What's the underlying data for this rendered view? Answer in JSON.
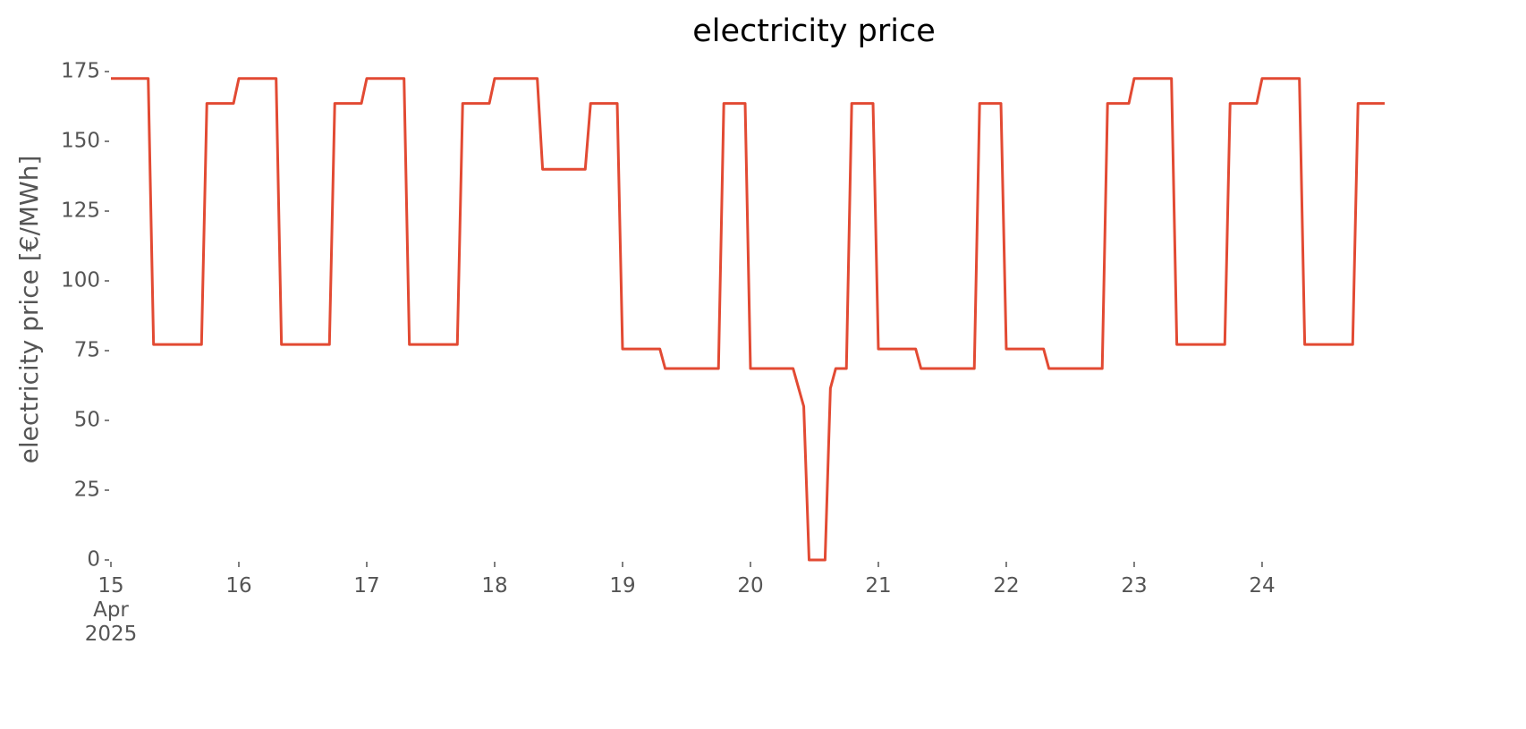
{
  "chart_data": {
    "type": "line",
    "title": "electricity price",
    "ylabel": "electricity price [€/MWh]",
    "ylim": [
      0,
      175
    ],
    "yticks": [
      0,
      25,
      50,
      75,
      100,
      125,
      150,
      175
    ],
    "xlim": [
      "2025-04-15 00:00",
      "2025-04-24 23:00"
    ],
    "xticks": [
      {
        "value": "2025-04-15 00:00",
        "label": "15\nApr\n2025"
      },
      {
        "value": "2025-04-16 00:00",
        "label": "16"
      },
      {
        "value": "2025-04-17 00:00",
        "label": "17"
      },
      {
        "value": "2025-04-18 00:00",
        "label": "18"
      },
      {
        "value": "2025-04-19 00:00",
        "label": "19"
      },
      {
        "value": "2025-04-20 00:00",
        "label": "20"
      },
      {
        "value": "2025-04-21 00:00",
        "label": "21"
      },
      {
        "value": "2025-04-22 00:00",
        "label": "22"
      },
      {
        "value": "2025-04-23 00:00",
        "label": "23"
      },
      {
        "value": "2025-04-24 00:00",
        "label": "24"
      }
    ],
    "x": [
      "2025-04-15 00:00",
      "2025-04-15 01:00",
      "2025-04-15 02:00",
      "2025-04-15 03:00",
      "2025-04-15 04:00",
      "2025-04-15 05:00",
      "2025-04-15 06:00",
      "2025-04-15 07:00",
      "2025-04-15 08:00",
      "2025-04-15 09:00",
      "2025-04-15 10:00",
      "2025-04-15 11:00",
      "2025-04-15 12:00",
      "2025-04-15 13:00",
      "2025-04-15 14:00",
      "2025-04-15 15:00",
      "2025-04-15 16:00",
      "2025-04-15 17:00",
      "2025-04-15 18:00",
      "2025-04-15 19:00",
      "2025-04-15 20:00",
      "2025-04-15 21:00",
      "2025-04-15 22:00",
      "2025-04-15 23:00",
      "2025-04-16 00:00",
      "2025-04-16 01:00",
      "2025-04-16 02:00",
      "2025-04-16 03:00",
      "2025-04-16 04:00",
      "2025-04-16 05:00",
      "2025-04-16 06:00",
      "2025-04-16 07:00",
      "2025-04-16 08:00",
      "2025-04-16 09:00",
      "2025-04-16 10:00",
      "2025-04-16 11:00",
      "2025-04-16 12:00",
      "2025-04-16 13:00",
      "2025-04-16 14:00",
      "2025-04-16 15:00",
      "2025-04-16 16:00",
      "2025-04-16 17:00",
      "2025-04-16 18:00",
      "2025-04-16 19:00",
      "2025-04-16 20:00",
      "2025-04-16 21:00",
      "2025-04-16 22:00",
      "2025-04-16 23:00",
      "2025-04-17 00:00",
      "2025-04-17 01:00",
      "2025-04-17 02:00",
      "2025-04-17 03:00",
      "2025-04-17 04:00",
      "2025-04-17 05:00",
      "2025-04-17 06:00",
      "2025-04-17 07:00",
      "2025-04-17 08:00",
      "2025-04-17 09:00",
      "2025-04-17 10:00",
      "2025-04-17 11:00",
      "2025-04-17 12:00",
      "2025-04-17 13:00",
      "2025-04-17 14:00",
      "2025-04-17 15:00",
      "2025-04-17 16:00",
      "2025-04-17 17:00",
      "2025-04-17 18:00",
      "2025-04-17 19:00",
      "2025-04-17 20:00",
      "2025-04-17 21:00",
      "2025-04-17 22:00",
      "2025-04-17 23:00",
      "2025-04-18 00:00",
      "2025-04-18 01:00",
      "2025-04-18 02:00",
      "2025-04-18 03:00",
      "2025-04-18 04:00",
      "2025-04-18 05:00",
      "2025-04-18 06:00",
      "2025-04-18 07:00",
      "2025-04-18 08:00",
      "2025-04-18 09:00",
      "2025-04-18 10:00",
      "2025-04-18 11:00",
      "2025-04-18 12:00",
      "2025-04-18 13:00",
      "2025-04-18 14:00",
      "2025-04-18 15:00",
      "2025-04-18 16:00",
      "2025-04-18 17:00",
      "2025-04-18 18:00",
      "2025-04-18 19:00",
      "2025-04-18 20:00",
      "2025-04-18 21:00",
      "2025-04-18 22:00",
      "2025-04-18 23:00",
      "2025-04-19 00:00",
      "2025-04-19 01:00",
      "2025-04-19 02:00",
      "2025-04-19 03:00",
      "2025-04-19 04:00",
      "2025-04-19 05:00",
      "2025-04-19 06:00",
      "2025-04-19 07:00",
      "2025-04-19 08:00",
      "2025-04-19 09:00",
      "2025-04-19 10:00",
      "2025-04-19 11:00",
      "2025-04-19 12:00",
      "2025-04-19 13:00",
      "2025-04-19 14:00",
      "2025-04-19 15:00",
      "2025-04-19 16:00",
      "2025-04-19 17:00",
      "2025-04-19 18:00",
      "2025-04-19 19:00",
      "2025-04-19 20:00",
      "2025-04-19 21:00",
      "2025-04-19 22:00",
      "2025-04-19 23:00",
      "2025-04-20 00:00",
      "2025-04-20 01:00",
      "2025-04-20 02:00",
      "2025-04-20 03:00",
      "2025-04-20 04:00",
      "2025-04-20 05:00",
      "2025-04-20 06:00",
      "2025-04-20 07:00",
      "2025-04-20 08:00",
      "2025-04-20 09:00",
      "2025-04-20 10:00",
      "2025-04-20 11:00",
      "2025-04-20 12:00",
      "2025-04-20 13:00",
      "2025-04-20 14:00",
      "2025-04-20 15:00",
      "2025-04-20 16:00",
      "2025-04-20 17:00",
      "2025-04-20 18:00",
      "2025-04-20 19:00",
      "2025-04-20 20:00",
      "2025-04-20 21:00",
      "2025-04-20 22:00",
      "2025-04-20 23:00",
      "2025-04-21 00:00",
      "2025-04-21 01:00",
      "2025-04-21 02:00",
      "2025-04-21 03:00",
      "2025-04-21 04:00",
      "2025-04-21 05:00",
      "2025-04-21 06:00",
      "2025-04-21 07:00",
      "2025-04-21 08:00",
      "2025-04-21 09:00",
      "2025-04-21 10:00",
      "2025-04-21 11:00",
      "2025-04-21 12:00",
      "2025-04-21 13:00",
      "2025-04-21 14:00",
      "2025-04-21 15:00",
      "2025-04-21 16:00",
      "2025-04-21 17:00",
      "2025-04-21 18:00",
      "2025-04-21 19:00",
      "2025-04-21 20:00",
      "2025-04-21 21:00",
      "2025-04-21 22:00",
      "2025-04-21 23:00",
      "2025-04-22 00:00",
      "2025-04-22 01:00",
      "2025-04-22 02:00",
      "2025-04-22 03:00",
      "2025-04-22 04:00",
      "2025-04-22 05:00",
      "2025-04-22 06:00",
      "2025-04-22 07:00",
      "2025-04-22 08:00",
      "2025-04-22 09:00",
      "2025-04-22 10:00",
      "2025-04-22 11:00",
      "2025-04-22 12:00",
      "2025-04-22 13:00",
      "2025-04-22 14:00",
      "2025-04-22 15:00",
      "2025-04-22 16:00",
      "2025-04-22 17:00",
      "2025-04-22 18:00",
      "2025-04-22 19:00",
      "2025-04-22 20:00",
      "2025-04-22 21:00",
      "2025-04-22 22:00",
      "2025-04-22 23:00",
      "2025-04-23 00:00",
      "2025-04-23 01:00",
      "2025-04-23 02:00",
      "2025-04-23 03:00",
      "2025-04-23 04:00",
      "2025-04-23 05:00",
      "2025-04-23 06:00",
      "2025-04-23 07:00",
      "2025-04-23 08:00",
      "2025-04-23 09:00",
      "2025-04-23 10:00",
      "2025-04-23 11:00",
      "2025-04-23 12:00",
      "2025-04-23 13:00",
      "2025-04-23 14:00",
      "2025-04-23 15:00",
      "2025-04-23 16:00",
      "2025-04-23 17:00",
      "2025-04-23 18:00",
      "2025-04-23 19:00",
      "2025-04-23 20:00",
      "2025-04-23 21:00",
      "2025-04-23 22:00",
      "2025-04-23 23:00",
      "2025-04-24 00:00",
      "2025-04-24 01:00",
      "2025-04-24 02:00",
      "2025-04-24 03:00",
      "2025-04-24 04:00",
      "2025-04-24 05:00",
      "2025-04-24 06:00",
      "2025-04-24 07:00",
      "2025-04-24 08:00",
      "2025-04-24 09:00",
      "2025-04-24 10:00",
      "2025-04-24 11:00",
      "2025-04-24 12:00",
      "2025-04-24 13:00",
      "2025-04-24 14:00",
      "2025-04-24 15:00",
      "2025-04-24 16:00",
      "2025-04-24 17:00",
      "2025-04-24 18:00",
      "2025-04-24 19:00",
      "2025-04-24 20:00",
      "2025-04-24 21:00",
      "2025-04-24 22:00",
      "2025-04-24 23:00"
    ],
    "series": [
      {
        "color": "#e24a33",
        "values": [
          172.5,
          172.5,
          172.5,
          172.5,
          172.5,
          172.5,
          172.5,
          172.5,
          77.2,
          77.2,
          77.2,
          77.2,
          77.2,
          77.2,
          77.2,
          77.2,
          77.2,
          77.2,
          163.6,
          163.6,
          163.6,
          163.6,
          163.6,
          163.6,
          172.5,
          172.5,
          172.5,
          172.5,
          172.5,
          172.5,
          172.5,
          172.5,
          77.2,
          77.2,
          77.2,
          77.2,
          77.2,
          77.2,
          77.2,
          77.2,
          77.2,
          77.2,
          163.6,
          163.6,
          163.6,
          163.6,
          163.6,
          163.6,
          172.5,
          172.5,
          172.5,
          172.5,
          172.5,
          172.5,
          172.5,
          172.5,
          77.2,
          77.2,
          77.2,
          77.2,
          77.2,
          77.2,
          77.2,
          77.2,
          77.2,
          77.2,
          163.6,
          163.6,
          163.6,
          163.6,
          163.6,
          163.6,
          172.5,
          172.5,
          172.5,
          172.5,
          172.5,
          172.5,
          172.5,
          172.5,
          172.5,
          140,
          140,
          140,
          140,
          140,
          140,
          140,
          140,
          140,
          163.6,
          163.6,
          163.6,
          163.6,
          163.6,
          163.6,
          75.6,
          75.6,
          75.6,
          75.6,
          75.6,
          75.6,
          75.6,
          75.6,
          68.6,
          68.6,
          68.6,
          68.6,
          68.6,
          68.6,
          68.6,
          68.6,
          68.6,
          68.6,
          68.6,
          163.6,
          163.6,
          163.6,
          163.6,
          163.6,
          68.6,
          68.6,
          68.6,
          68.6,
          68.6,
          68.6,
          68.6,
          68.6,
          68.6,
          61.8,
          55,
          0,
          0,
          0,
          0,
          61.5,
          68.6,
          68.6,
          68.6,
          163.6,
          163.6,
          163.6,
          163.6,
          163.6,
          75.6,
          75.6,
          75.6,
          75.6,
          75.6,
          75.6,
          75.6,
          75.6,
          68.6,
          68.6,
          68.6,
          68.6,
          68.6,
          68.6,
          68.6,
          68.6,
          68.6,
          68.6,
          68.6,
          163.6,
          163.6,
          163.6,
          163.6,
          163.6,
          75.6,
          75.6,
          75.6,
          75.6,
          75.6,
          75.6,
          75.6,
          75.6,
          68.6,
          68.6,
          68.6,
          68.6,
          68.6,
          68.6,
          68.6,
          68.6,
          68.6,
          68.6,
          68.6,
          163.6,
          163.6,
          163.6,
          163.6,
          163.6,
          172.5,
          172.5,
          172.5,
          172.5,
          172.5,
          172.5,
          172.5,
          172.5,
          77.2,
          77.2,
          77.2,
          77.2,
          77.2,
          77.2,
          77.2,
          77.2,
          77.2,
          77.2,
          163.6,
          163.6,
          163.6,
          163.6,
          163.6,
          163.6,
          172.5,
          172.5,
          172.5,
          172.5,
          172.5,
          172.5,
          172.5,
          172.5,
          77.2,
          77.2,
          77.2,
          77.2,
          77.2,
          77.2,
          77.2,
          77.2,
          77.2,
          77.2,
          163.6,
          163.6,
          163.6,
          163.6,
          163.6,
          163.6
        ]
      }
    ]
  }
}
